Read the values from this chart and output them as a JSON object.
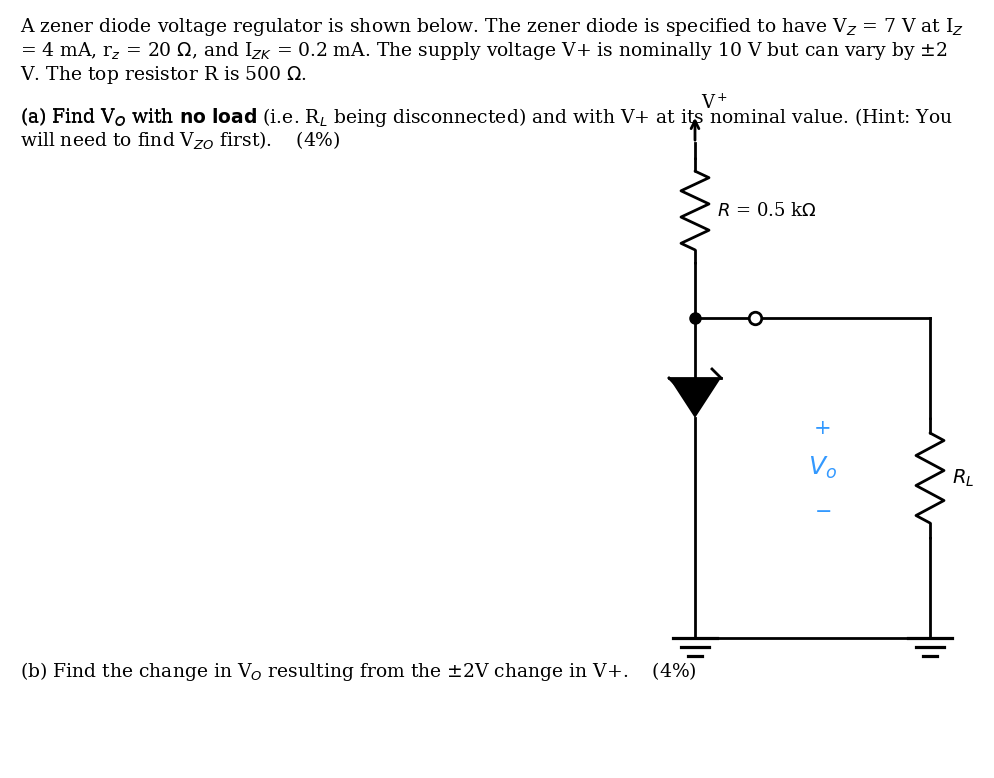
{
  "line_color": "#000000",
  "vo_color": "#3399ff",
  "bg_color": "#ffffff",
  "text_color": "#000000",
  "figsize": [
    9.94,
    7.78
  ],
  "dpi": 100
}
